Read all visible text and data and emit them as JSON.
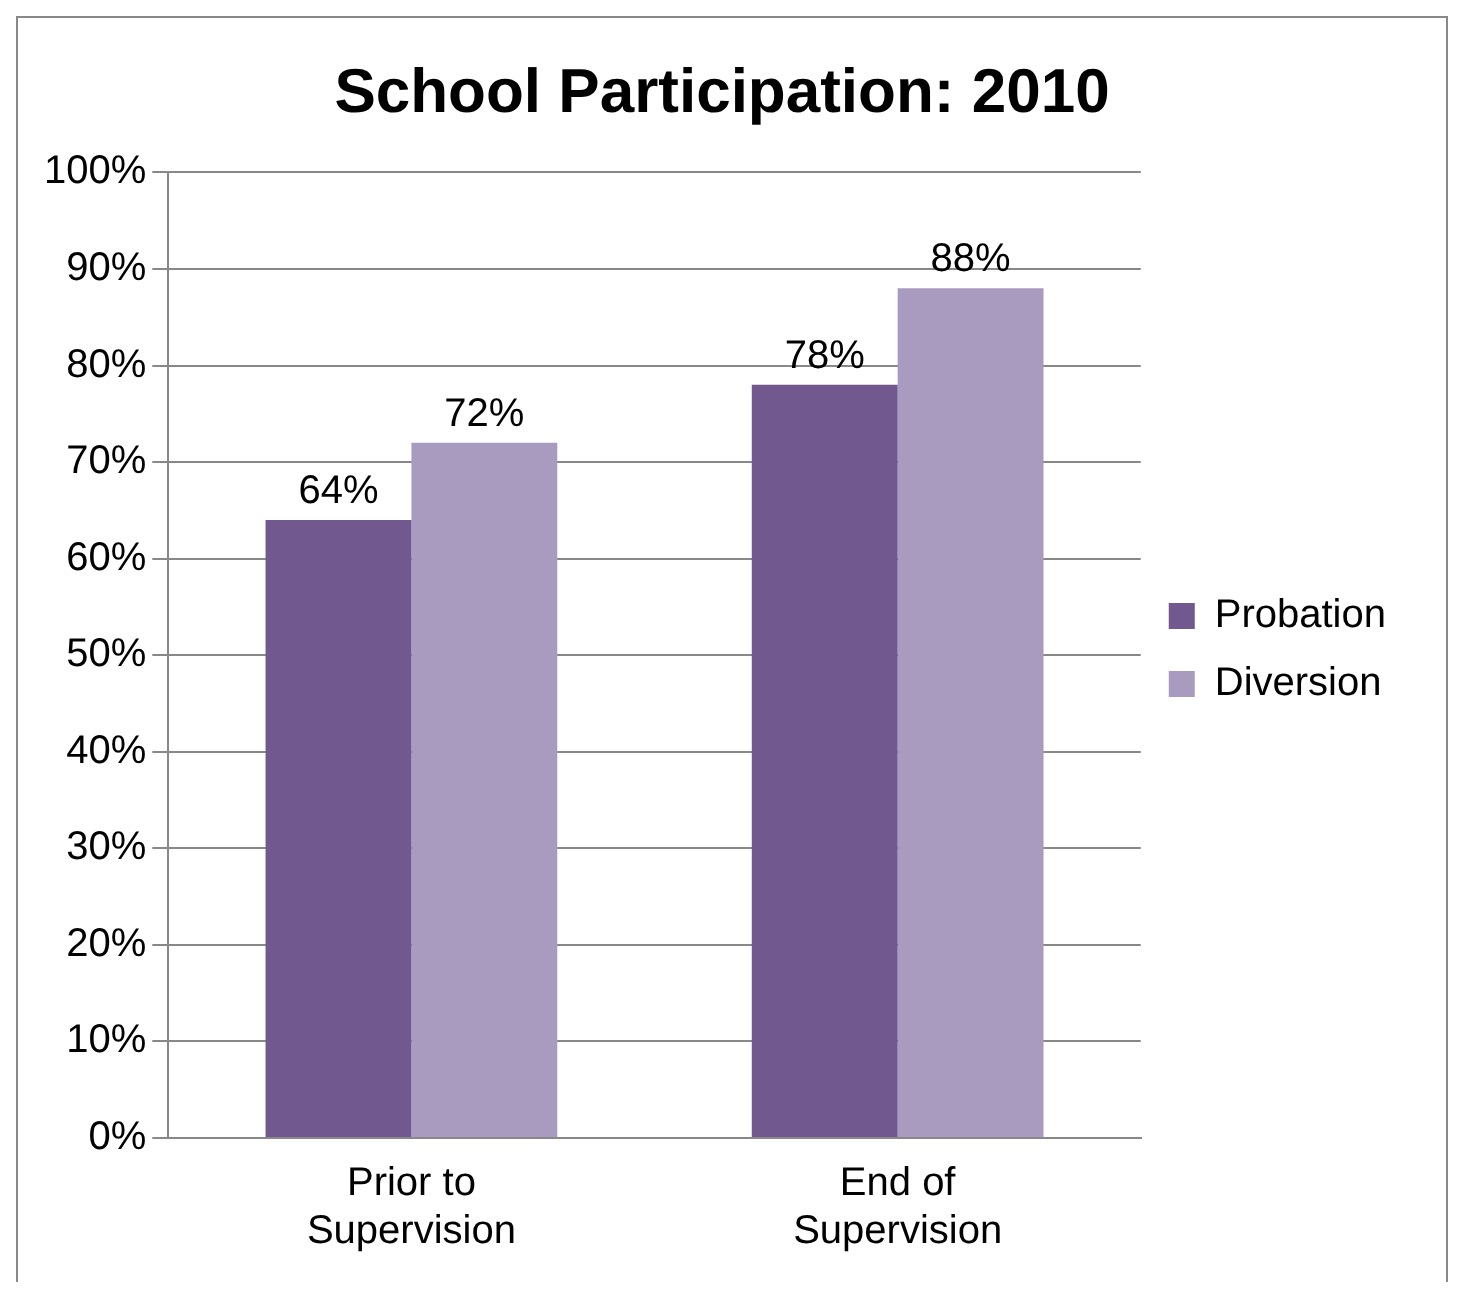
{
  "chart_data": {
    "type": "bar",
    "title": "School Participation: 2010",
    "categories": [
      "Prior to Supervision",
      "End of Supervision"
    ],
    "series": [
      {
        "name": "Probation",
        "color": "#71588f",
        "values": [
          64,
          78
        ],
        "value_labels": [
          "64%",
          "78%"
        ]
      },
      {
        "name": "Diversion",
        "color": "#a89bbf",
        "values": [
          72,
          88
        ],
        "value_labels": [
          "72%",
          "88%"
        ]
      }
    ],
    "ylim": [
      0,
      100
    ],
    "yticks": [
      {
        "value": 0,
        "label": "0%"
      },
      {
        "value": 10,
        "label": "10%"
      },
      {
        "value": 20,
        "label": "20%"
      },
      {
        "value": 30,
        "label": "30%"
      },
      {
        "value": 40,
        "label": "40%"
      },
      {
        "value": 50,
        "label": "50%"
      },
      {
        "value": 60,
        "label": "60%"
      },
      {
        "value": 70,
        "label": "70%"
      },
      {
        "value": 80,
        "label": "80%"
      },
      {
        "value": 90,
        "label": "90%"
      },
      {
        "value": 100,
        "label": "100%"
      }
    ],
    "grid": "y",
    "legend": "right"
  }
}
